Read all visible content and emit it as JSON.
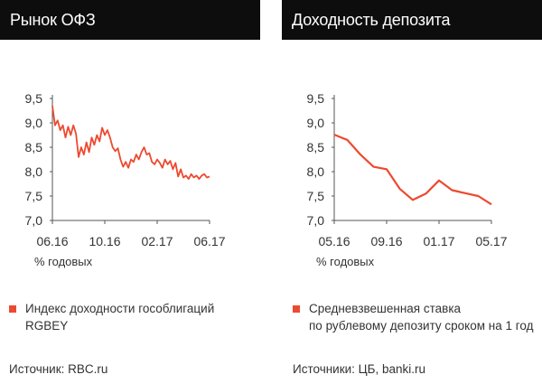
{
  "left": {
    "title": "Рынок ОФЗ",
    "unit": "% годовых",
    "legend": "Индекс доходности гособлигаций RGBEY",
    "source": "Источник: RBC.ru"
  },
  "right": {
    "title": "Доходность депозита",
    "unit": "% годовых",
    "legend_line1": "Средневзвешенная ставка",
    "legend_line2": "по рублевому депозиту сроком на 1 год",
    "source": "Источники: ЦБ,  banki.ru"
  },
  "colors": {
    "series": "#ec4a30",
    "axis": "#555555",
    "header_bg": "#0d0d0d"
  },
  "chart_data": [
    {
      "type": "line",
      "yticks": [
        "9,5",
        "9,0",
        "8,5",
        "8,0",
        "7,5",
        "7,0"
      ],
      "ylim": [
        7.0,
        9.5
      ],
      "xticks": [
        "06.16",
        "10.16",
        "02.17",
        "06.17"
      ],
      "xlim": [
        0,
        12
      ],
      "grid": false,
      "legend_position": "below",
      "series": [
        {
          "x": [
            0,
            0.2,
            0.4,
            0.6,
            0.8,
            1.0,
            1.2,
            1.4,
            1.6,
            1.8,
            2.0,
            2.2,
            2.4,
            2.6,
            2.8,
            3.0,
            3.2,
            3.4,
            3.6,
            3.8,
            4.0,
            4.2,
            4.4,
            4.6,
            4.8,
            5.0,
            5.2,
            5.4,
            5.6,
            5.8,
            6.0,
            6.2,
            6.4,
            6.6,
            6.8,
            7.0,
            7.2,
            7.4,
            7.6,
            7.8,
            8.0,
            8.2,
            8.4,
            8.6,
            8.8,
            9.0,
            9.2,
            9.4,
            9.6,
            9.8,
            10.0,
            10.2,
            10.4,
            10.6,
            10.8,
            11.0,
            11.2,
            11.4,
            11.6,
            11.8,
            12.0
          ],
          "values": [
            9.35,
            8.95,
            9.05,
            8.85,
            8.95,
            8.7,
            8.92,
            8.75,
            8.95,
            8.78,
            8.3,
            8.5,
            8.35,
            8.6,
            8.4,
            8.7,
            8.55,
            8.75,
            8.62,
            8.9,
            8.75,
            8.85,
            8.7,
            8.5,
            8.42,
            8.48,
            8.25,
            8.1,
            8.2,
            8.08,
            8.25,
            8.2,
            8.35,
            8.25,
            8.4,
            8.5,
            8.35,
            8.38,
            8.2,
            8.15,
            8.25,
            8.18,
            8.08,
            8.25,
            8.15,
            8.22,
            8.05,
            8.18,
            7.9,
            8.05,
            7.88,
            7.92,
            7.85,
            7.95,
            7.88,
            7.92,
            7.85,
            7.92,
            7.95,
            7.88,
            7.9
          ]
        }
      ]
    },
    {
      "type": "line",
      "yticks": [
        "9,5",
        "9,0",
        "8,5",
        "8,0",
        "7,5",
        "7,0"
      ],
      "ylim": [
        7.0,
        9.5
      ],
      "xticks": [
        "05.16",
        "09.16",
        "01.17",
        "05.17"
      ],
      "xlim": [
        0,
        12
      ],
      "grid": false,
      "legend_position": "below",
      "series": [
        {
          "x": [
            0,
            1,
            2,
            3,
            4,
            5,
            6,
            7,
            8,
            9,
            10,
            11,
            12
          ],
          "values": [
            8.76,
            8.65,
            8.35,
            8.1,
            8.05,
            7.65,
            7.42,
            7.55,
            7.82,
            7.62,
            7.56,
            7.5,
            7.33
          ]
        }
      ]
    }
  ]
}
